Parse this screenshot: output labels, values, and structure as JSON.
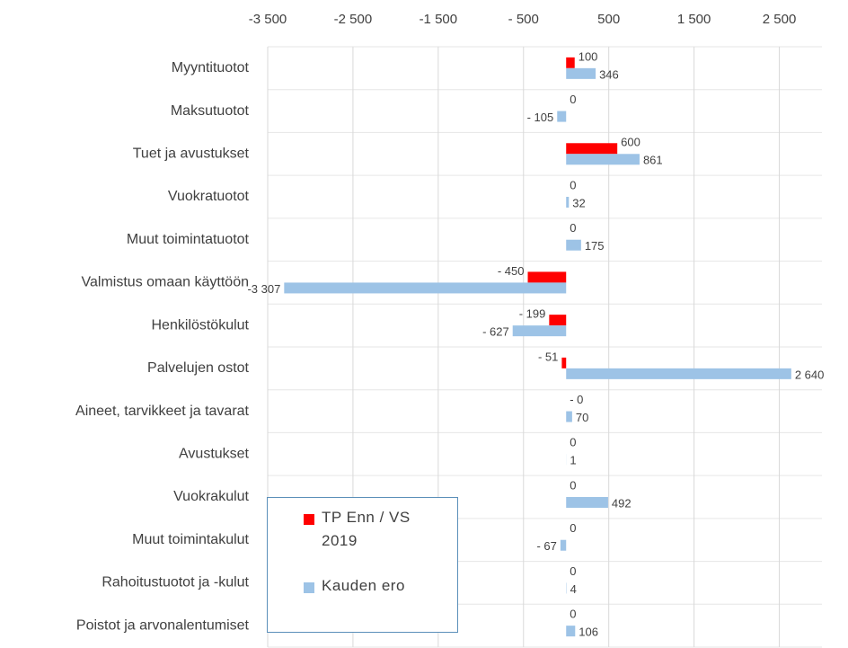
{
  "chart_data": {
    "type": "hbar",
    "categories": [
      "Myyntituotot",
      "Maksutuotot",
      "Tuet ja avustukset",
      "Vuokratuotot",
      "Muut toimintatuotot",
      "Valmistus omaan käyttöön",
      "Henkilöstökulut",
      "Palvelujen ostot",
      "Aineet, tarvikkeet ja tavarat",
      "Avustukset",
      "Vuokrakulut",
      "Muut toimintakulut",
      "Rahoitustuotot ja -kulut",
      "Poistot ja arvonalentumiset"
    ],
    "series": [
      {
        "name": "TP Enn / VS 2019",
        "color": "#ff0000",
        "values": [
          100,
          0,
          600,
          0,
          0,
          -450,
          -199,
          -51,
          0,
          0,
          0,
          0,
          0,
          0
        ],
        "value_labels": [
          "100",
          "0",
          "600",
          "0",
          "0",
          "- 450",
          "- 199",
          "- 51",
          "- 0",
          "0",
          "0",
          "0",
          "0",
          "0"
        ]
      },
      {
        "name": "Kauden ero",
        "color": "#9dc3e6",
        "values": [
          346,
          -105,
          861,
          32,
          175,
          -3307,
          -627,
          2640,
          70,
          1,
          492,
          -67,
          4,
          106
        ],
        "value_labels": [
          "346",
          "- 105",
          "861",
          "32",
          "175",
          "-3 307",
          "- 627",
          "2 640",
          "70",
          "1",
          "492",
          "- 67",
          "4",
          "106"
        ]
      }
    ],
    "xlim": [
      -3500,
      3000
    ],
    "xticks": [
      {
        "value": -3500,
        "label": "-3 500"
      },
      {
        "value": -2500,
        "label": "-2 500"
      },
      {
        "value": -1500,
        "label": "-1 500"
      },
      {
        "value": -500,
        "label": "- 500"
      },
      500,
      {
        "value": 1500,
        "label": "1 500"
      },
      {
        "value": 2500,
        "label": "2 500"
      }
    ],
    "grid": true,
    "legend": "bottom-left"
  }
}
